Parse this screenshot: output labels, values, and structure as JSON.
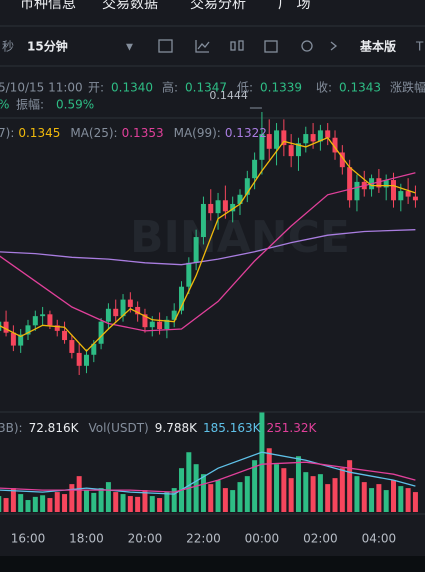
{
  "nav": {
    "tabs": [
      "币种信息",
      "交易数据",
      "交易分析",
      "广 场"
    ]
  },
  "toolbar": {
    "seconds": "秒",
    "interval": "15分钟",
    "dropdown": "▼",
    "view": "基本版",
    "extra": "T"
  },
  "info": {
    "date": "5/10/15 11:00",
    "open_label": "开:",
    "open": "0.1340",
    "high_label": "高:",
    "high": "0.1347",
    "low_label": "低:",
    "low": "0.1339",
    "close_label": "收:",
    "close": "0.1343",
    "change_label": "涨跌幅",
    "change_tail": "%",
    "amp_label": "振幅:",
    "amp": "0.59%"
  },
  "ma_legend": [
    {
      "label": "7):",
      "value": "0.1345",
      "color": "#f0b90b"
    },
    {
      "label": "MA(25):",
      "value": "0.1353",
      "color": "#e0409a"
    },
    {
      "label": "MA(99):",
      "value": "0.1322",
      "color": "#a97de0"
    }
  ],
  "peak_label": "0.1444",
  "watermark": "BINANCE",
  "vol_legend": {
    "prefix": "3B):",
    "value": "72.816K",
    "label": "Vol(USDT)",
    "usdt": "9.788K",
    "ma5": "185.163K",
    "ma10": "251.32K"
  },
  "time_labels": [
    "16:00",
    "18:00",
    "20:00",
    "22:00",
    "00:00",
    "02:00",
    "04:00"
  ],
  "candles": [
    [
      0.1325,
      0.1333,
      0.1318,
      0.133
    ],
    [
      0.133,
      0.1336,
      0.1322,
      0.1324
    ],
    [
      0.1324,
      0.1328,
      0.1314,
      0.1317
    ],
    [
      0.1317,
      0.1326,
      0.1313,
      0.1323
    ],
    [
      0.1323,
      0.1331,
      0.132,
      0.1328
    ],
    [
      0.1328,
      0.1336,
      0.1325,
      0.1333
    ],
    [
      0.1333,
      0.1338,
      0.1328,
      0.1334
    ],
    [
      0.1334,
      0.1336,
      0.1326,
      0.1328
    ],
    [
      0.1328,
      0.1331,
      0.1322,
      0.1325
    ],
    [
      0.1325,
      0.133,
      0.1318,
      0.132
    ],
    [
      0.132,
      0.1323,
      0.131,
      0.1313
    ],
    [
      0.1313,
      0.1318,
      0.1301,
      0.1306
    ],
    [
      0.1306,
      0.1315,
      0.1302,
      0.1312
    ],
    [
      0.1312,
      0.132,
      0.1308,
      0.1318
    ],
    [
      0.1318,
      0.1332,
      0.1315,
      0.133
    ],
    [
      0.133,
      0.134,
      0.1326,
      0.1337
    ],
    [
      0.1337,
      0.1342,
      0.133,
      0.1333
    ],
    [
      0.1333,
      0.1345,
      0.133,
      0.1342
    ],
    [
      0.1342,
      0.1346,
      0.1335,
      0.1338
    ],
    [
      0.1338,
      0.1341,
      0.133,
      0.1334
    ],
    [
      0.1334,
      0.1337,
      0.1324,
      0.1327
    ],
    [
      0.1327,
      0.1333,
      0.1322,
      0.133
    ],
    [
      0.133,
      0.1335,
      0.1323,
      0.1326
    ],
    [
      0.1326,
      0.1333,
      0.1321,
      0.1331
    ],
    [
      0.1331,
      0.134,
      0.1327,
      0.1336
    ],
    [
      0.1336,
      0.1352,
      0.1334,
      0.1349
    ],
    [
      0.1349,
      0.1365,
      0.1345,
      0.1362
    ],
    [
      0.1362,
      0.138,
      0.1358,
      0.1376
    ],
    [
      0.1376,
      0.1398,
      0.1372,
      0.1394
    ],
    [
      0.1394,
      0.1402,
      0.1385,
      0.1389
    ],
    [
      0.1389,
      0.14,
      0.138,
      0.1396
    ],
    [
      0.1396,
      0.1404,
      0.1386,
      0.139
    ],
    [
      0.139,
      0.1398,
      0.1384,
      0.1394
    ],
    [
      0.1394,
      0.1402,
      0.1388,
      0.1399
    ],
    [
      0.1399,
      0.1412,
      0.1395,
      0.1408
    ],
    [
      0.1408,
      0.1422,
      0.1402,
      0.1418
    ],
    [
      0.1418,
      0.1444,
      0.141,
      0.1432
    ],
    [
      0.1432,
      0.144,
      0.1418,
      0.1424
    ],
    [
      0.1424,
      0.1438,
      0.1415,
      0.1434
    ],
    [
      0.1434,
      0.144,
      0.142,
      0.1426
    ],
    [
      0.1426,
      0.1432,
      0.1414,
      0.142
    ],
    [
      0.142,
      0.143,
      0.1412,
      0.1427
    ],
    [
      0.1427,
      0.1436,
      0.1422,
      0.1432
    ],
    [
      0.1432,
      0.1438,
      0.1424,
      0.1428
    ],
    [
      0.1428,
      0.1437,
      0.1423,
      0.1434
    ],
    [
      0.1434,
      0.1438,
      0.1426,
      0.143
    ],
    [
      0.143,
      0.1434,
      0.1418,
      0.1422
    ],
    [
      0.1422,
      0.1426,
      0.141,
      0.1414
    ],
    [
      0.1414,
      0.1418,
      0.1392,
      0.1396
    ],
    [
      0.1396,
      0.141,
      0.139,
      0.1406
    ],
    [
      0.1406,
      0.1412,
      0.1398,
      0.1402
    ],
    [
      0.1402,
      0.141,
      0.1398,
      0.1408
    ],
    [
      0.1408,
      0.1413,
      0.14,
      0.1403
    ],
    [
      0.1403,
      0.141,
      0.1396,
      0.1407
    ],
    [
      0.1407,
      0.1411,
      0.1392,
      0.1396
    ],
    [
      0.1396,
      0.1405,
      0.139,
      0.1401
    ],
    [
      0.1401,
      0.1408,
      0.1394,
      0.1398
    ],
    [
      0.1398,
      0.1404,
      0.1392,
      0.1396
    ]
  ],
  "ma_lines": [
    {
      "color": "#a97de0",
      "index": [
        0,
        5,
        10,
        15,
        20,
        25,
        30,
        35,
        40,
        45,
        50,
        57
      ],
      "values": [
        0.1368,
        0.1367,
        0.1365,
        0.1364,
        0.1362,
        0.1361,
        0.1364,
        0.1368,
        0.1373,
        0.1377,
        0.1379,
        0.138
      ]
    },
    {
      "color": "#e0409a",
      "index": [
        0,
        5,
        10,
        15,
        20,
        25,
        30,
        35,
        40,
        45,
        50,
        57
      ],
      "values": [
        0.1366,
        0.1352,
        0.1338,
        0.1329,
        0.1325,
        0.1326,
        0.1341,
        0.1363,
        0.1382,
        0.1399,
        0.1404,
        0.1411
      ]
    },
    {
      "color": "#f0b90b",
      "index": [
        0,
        3,
        6,
        9,
        12,
        15,
        18,
        21,
        24,
        27,
        30,
        33,
        36,
        39,
        42,
        45,
        48,
        51,
        54,
        57
      ],
      "values": [
        0.1328,
        0.1322,
        0.1328,
        0.1327,
        0.1314,
        0.1326,
        0.1337,
        0.1331,
        0.133,
        0.1355,
        0.1386,
        0.1394,
        0.1412,
        0.1428,
        0.1425,
        0.143,
        0.1414,
        0.1404,
        0.1404,
        0.14
      ]
    }
  ],
  "volumes": [
    40,
    35,
    60,
    45,
    30,
    38,
    42,
    35,
    50,
    45,
    70,
    90,
    55,
    48,
    60,
    75,
    50,
    45,
    40,
    38,
    55,
    40,
    35,
    50,
    60,
    110,
    150,
    120,
    95,
    70,
    80,
    60,
    55,
    75,
    90,
    130,
    251,
    160,
    120,
    110,
    85,
    140,
    100,
    90,
    95,
    70,
    85,
    110,
    130,
    90,
    75,
    60,
    70,
    55,
    80,
    65,
    60,
    50
  ],
  "vol_lines": [
    {
      "color": "#5fc1e8",
      "index": [
        0,
        6,
        12,
        18,
        24,
        30,
        36,
        42,
        48,
        54,
        57
      ],
      "values": [
        55,
        50,
        60,
        50,
        45,
        110,
        150,
        130,
        100,
        80,
        65
      ]
    },
    {
      "color": "#e0409a",
      "index": [
        0,
        6,
        12,
        18,
        24,
        30,
        36,
        42,
        48,
        54,
        57
      ],
      "values": [
        60,
        55,
        55,
        55,
        50,
        80,
        120,
        125,
        110,
        95,
        80
      ]
    }
  ]
}
